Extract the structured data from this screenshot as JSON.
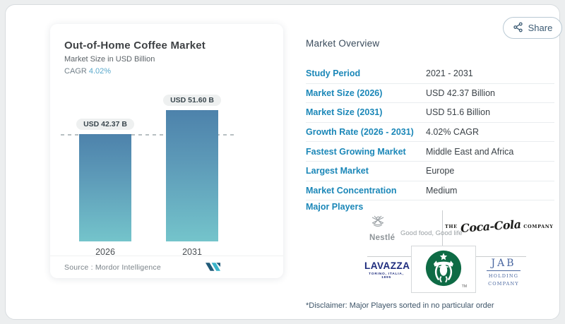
{
  "share": {
    "label": "Share"
  },
  "chart_card": {
    "title": "Out-of-Home Coffee Market",
    "subtitle": "Market Size in USD Billion",
    "cagr_label": "CAGR",
    "cagr_value": "4.02%",
    "source_label": "Source :  Mordor Intelligence"
  },
  "chart_data": {
    "type": "bar",
    "categories": [
      "2026",
      "2031"
    ],
    "values": [
      42.37,
      51.6
    ],
    "value_labels": [
      "USD 42.37 B",
      "USD 51.60 B"
    ],
    "title": "Out-of-Home Coffee Market",
    "ylabel": "Market Size in USD Billion",
    "ylim": [
      0,
      55
    ],
    "reference_line": 42.37,
    "grid": false,
    "legend": false,
    "bar_gradient": [
      "#4d82ab",
      "#74c4cb"
    ]
  },
  "overview": {
    "heading": "Market Overview",
    "rows": [
      {
        "label": "Study Period",
        "value": "2021 - 2031"
      },
      {
        "label": "Market Size (2026)",
        "value": "USD 42.37 Billion"
      },
      {
        "label": "Market Size (2031)",
        "value": "USD 51.6 Billion"
      },
      {
        "label": "Growth Rate (2026 - 2031)",
        "value": "4.02% CAGR"
      },
      {
        "label": "Fastest Growing Market",
        "value": "Middle East and Africa"
      },
      {
        "label": "Largest Market",
        "value": "Europe"
      },
      {
        "label": "Market Concentration",
        "value": "Medium"
      }
    ],
    "major_players_label": "Major Players",
    "disclaimer": "*Disclaimer: Major Players sorted in no particular order"
  },
  "players": {
    "nestle": {
      "name": "Nestlé",
      "tagline": "Good food, Good life"
    },
    "cocacola": {
      "pre": "THE",
      "script": "Coca-Cola",
      "post": "COMPANY"
    },
    "lavazza": {
      "name": "LAVAZZA",
      "sub": "TORINO, ITALIA, 1895"
    },
    "starbucks": {
      "tm": "TM"
    },
    "jab": {
      "name": "JAB",
      "line1": "HOLDING",
      "line2": "COMPANY"
    }
  },
  "colors": {
    "accent_blue": "#1b87b8",
    "cagr_blue": "#59a8cb",
    "bar_top": "#4d82ab",
    "bar_bottom": "#74c4cb",
    "starbucks_green": "#0e6b45",
    "lavazza_navy": "#1d2b7d",
    "jab_blue": "#4a67a0",
    "nestle_gray": "#8e9498",
    "share_color": "#3c5b74"
  }
}
